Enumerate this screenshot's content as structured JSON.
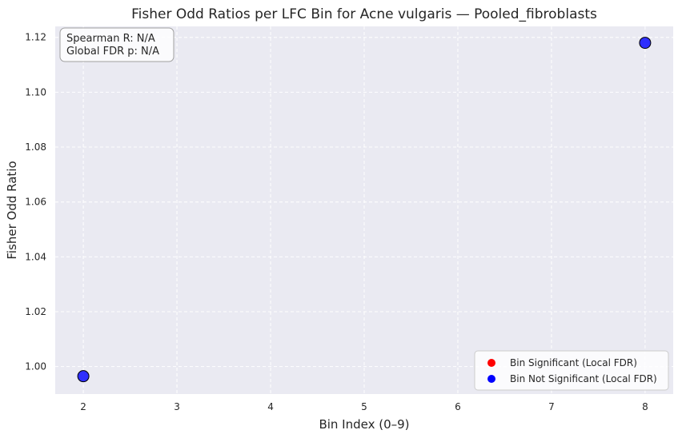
{
  "chart_data": {
    "type": "scatter",
    "title": "Fisher Odd Ratios per LFC Bin for Acne vulgaris — Pooled_fibroblasts",
    "xlabel": "Bin Index (0–9)",
    "ylabel": "Fisher Odd Ratio",
    "xlim": [
      1.7,
      8.3
    ],
    "ylim": [
      0.99,
      1.124
    ],
    "xticks": [
      2,
      3,
      4,
      5,
      6,
      7,
      8
    ],
    "xtick_labels": [
      "2",
      "3",
      "4",
      "5",
      "6",
      "7",
      "8"
    ],
    "yticks": [
      1.0,
      1.02,
      1.04,
      1.06,
      1.08,
      1.1,
      1.12
    ],
    "ytick_labels": [
      "1.00",
      "1.02",
      "1.04",
      "1.06",
      "1.08",
      "1.10",
      "1.12"
    ],
    "grid": true,
    "legend_position": "bottom-right",
    "series": [
      {
        "name": "Bin Significant (Local FDR)",
        "color": "#ff0000",
        "x": [],
        "y": []
      },
      {
        "name": "Bin Not Significant (Local FDR)",
        "color": "#0000ff",
        "x": [
          2,
          8
        ],
        "y": [
          0.9965,
          1.118
        ]
      }
    ],
    "annotation": {
      "spearman": "Spearman R: N/A",
      "fdr": "Global FDR p: N/A"
    }
  }
}
